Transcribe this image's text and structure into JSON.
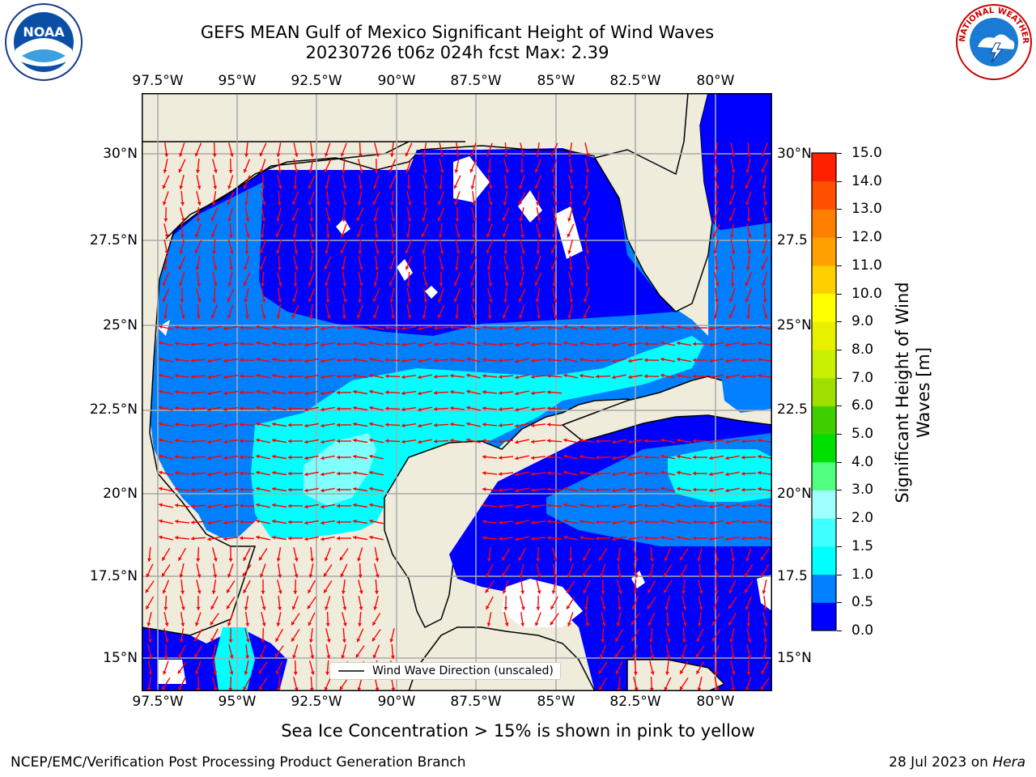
{
  "title": {
    "line1": "GEFS MEAN Gulf of Mexico Significant Height of Wind Waves",
    "line2": "20230726 t06z 024h fcst   Max: 2.39"
  },
  "logos": {
    "left": "NOAA",
    "left_icon": "noaa-logo-icon",
    "right_icon": "nws-logo-icon",
    "right_text": "NATIONAL WEATHER SERVICE"
  },
  "map": {
    "lon_labels": [
      "97.5°W",
      "95°W",
      "92.5°W",
      "90°W",
      "87.5°W",
      "85°W",
      "82.5°W",
      "80°W"
    ],
    "lat_labels": [
      "30°N",
      "27.5°N",
      "25°N",
      "22.5°N",
      "20°N",
      "17.5°N",
      "15°N"
    ],
    "lat_labels_right": [
      "30°N",
      "27.5",
      "25°N",
      "22.5",
      "20°N",
      "17.5",
      "15°N"
    ],
    "land_color": "#efecdc",
    "ocean_colors": {
      "low": "#0000ff",
      "mid": "#0080ff",
      "high": "#00ffff",
      "peak": "#80ffff"
    },
    "arrow_color": "#ff0000"
  },
  "legend": {
    "label": "Wind Wave Direction (unscaled)"
  },
  "colorbar": {
    "label": "Significant Height of Wind Waves [m]",
    "ticks": [
      "0.0",
      "0.5",
      "1.0",
      "1.5",
      "2.0",
      "3.0",
      "4.0",
      "5.0",
      "6.0",
      "7.0",
      "8.0",
      "9.0",
      "10.0",
      "11.0",
      "12.0",
      "13.0",
      "14.0",
      "15.0"
    ],
    "colors": [
      "#0000ff",
      "#0080ff",
      "#00ffff",
      "#40ffff",
      "#a0ffff",
      "#50ff80",
      "#00e000",
      "#40d000",
      "#a0e000",
      "#c8f000",
      "#e8f000",
      "#ffff00",
      "#ffd000",
      "#ffa000",
      "#ff8000",
      "#ff5000",
      "#ff2000"
    ]
  },
  "notes": {
    "sea_ice": "Sea Ice Concentration > 15% is shown in pink to yellow"
  },
  "footer": {
    "left": "NCEP/EMC/Verification Post Processing Product Generation Branch",
    "date": "28 Jul 2023 on ",
    "host": "Hera"
  }
}
